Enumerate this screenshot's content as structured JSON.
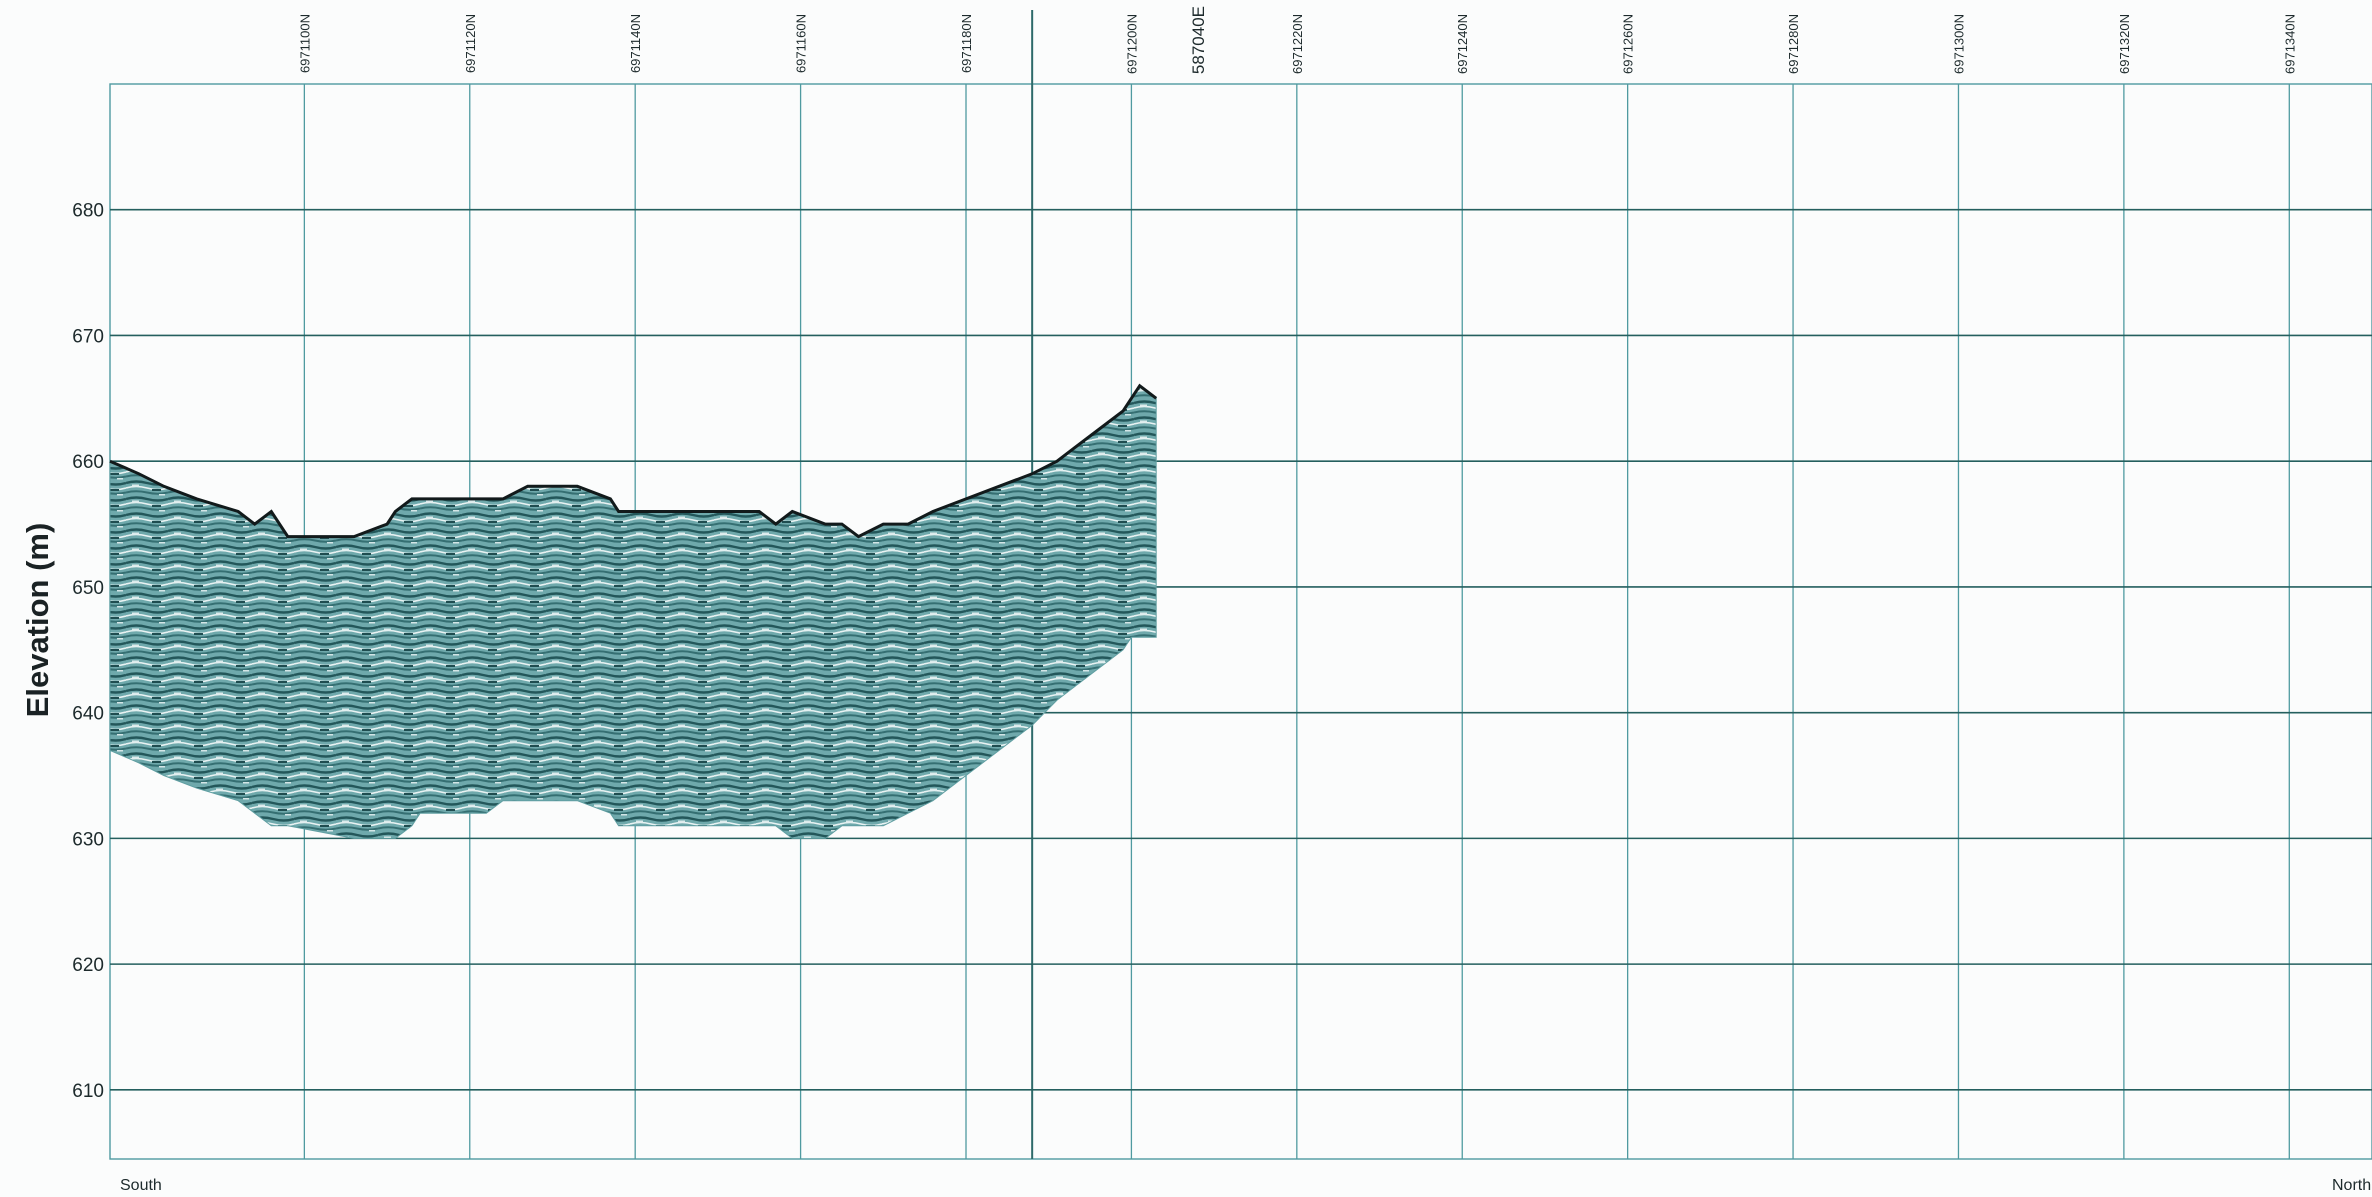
{
  "chart_data": {
    "type": "area",
    "ylabel": "Elevation (m)",
    "ylim": [
      604.5,
      690
    ],
    "y_ticks": [
      680,
      670,
      660,
      650,
      640,
      630,
      620,
      610
    ],
    "x_unit": "northing (m)",
    "xlim": [
      6971076.5,
      6971350
    ],
    "x_ticks": [
      {
        "value": 6971100,
        "label": "6971100N"
      },
      {
        "value": 6971120,
        "label": "6971120N"
      },
      {
        "value": 6971140,
        "label": "6971140N"
      },
      {
        "value": 6971160,
        "label": "6971160N"
      },
      {
        "value": 6971180,
        "label": "6971180N"
      },
      {
        "value": 6971200,
        "label": "6971200N"
      },
      {
        "value": 6971220,
        "label": "6971220N"
      },
      {
        "value": 6971240,
        "label": "6971240N"
      },
      {
        "value": 6971260,
        "label": "6971260N"
      },
      {
        "value": 6971280,
        "label": "6971280N"
      },
      {
        "value": 6971300,
        "label": "6971300N"
      },
      {
        "value": 6971320,
        "label": "6971320N"
      },
      {
        "value": 6971340,
        "label": "6971340N"
      }
    ],
    "crossing": {
      "value": 6971188,
      "label": "587040E"
    },
    "grid": true,
    "direction_labels": {
      "left": "South",
      "right": "North"
    },
    "series": [
      {
        "type": "line",
        "x": [
          6971076.5,
          6971080,
          6971083,
          6971087,
          6971092,
          6971094,
          6971096,
          6971098,
          6971106,
          6971110,
          6971111,
          6971113,
          6971114,
          6971115,
          6971119,
          6971122,
          6971124,
          6971127,
          6971133,
          6971137,
          6971138,
          6971140,
          6971146,
          6971155,
          6971157,
          6971159,
          6971163,
          6971165,
          6971167,
          6971170,
          6971173,
          6971176,
          6971180,
          6971184,
          6971188,
          6971191,
          6971193,
          6971195,
          6971197,
          6971199,
          6971200,
          6971201,
          6971203
        ],
        "y": [
          660,
          659,
          658,
          657,
          656,
          655,
          656,
          654,
          654,
          655,
          656,
          657,
          657,
          657,
          657,
          657,
          657,
          658,
          658,
          657,
          656,
          656,
          656,
          656,
          655,
          656,
          655,
          655,
          654,
          655,
          655,
          656,
          657,
          658,
          659,
          660,
          661,
          662,
          663,
          664,
          665,
          666,
          665
        ],
        "area_bottom": [
          637,
          636,
          635,
          634,
          633,
          632,
          631,
          631,
          630,
          630,
          630,
          631,
          632,
          632,
          632,
          632,
          633,
          633,
          633,
          632,
          631,
          631,
          631,
          631,
          631,
          630,
          630,
          631,
          631,
          631,
          632,
          633,
          635,
          637,
          639,
          641,
          642,
          643,
          644,
          645,
          646,
          646,
          646
        ]
      }
    ]
  }
}
